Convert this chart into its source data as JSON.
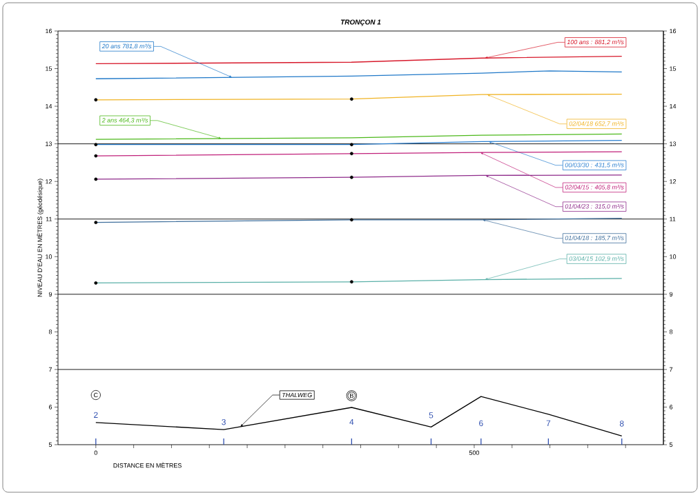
{
  "chart_data": {
    "type": "line",
    "title": "TRONÇON 1",
    "xlabel": "DISTANCE EN MÈTRES",
    "ylabel": "NIVEAU D'EAU EN MÈTRES (géodésique)",
    "xlim": [
      -50,
      750
    ],
    "ylim": [
      5,
      16
    ],
    "y2lim": [
      5,
      16
    ],
    "xticks": [
      0,
      {
        "value": 50,
        "label": null
      },
      {
        "value": 100,
        "label": null
      },
      {
        "value": 150,
        "label": null
      },
      {
        "value": 200,
        "label": null
      },
      {
        "value": 250,
        "label": null
      },
      {
        "value": 300,
        "label": null
      },
      {
        "value": 350,
        "label": null
      },
      {
        "value": 400,
        "label": null
      },
      {
        "value": 450,
        "label": null
      },
      500,
      {
        "value": 550,
        "label": null
      },
      {
        "value": 600,
        "label": null
      },
      {
        "value": 650,
        "label": null
      },
      {
        "value": 700,
        "label": null
      }
    ],
    "yticks": [
      5,
      6,
      7,
      8,
      9,
      10,
      11,
      12,
      13,
      14,
      15,
      16
    ],
    "y2ticks": [
      5,
      6,
      7,
      8,
      9,
      10,
      11,
      12,
      13,
      14,
      15,
      16
    ],
    "legend": false,
    "ref_lines": [
      {
        "axis": "y",
        "value": 7,
        "color": "#000000"
      },
      {
        "axis": "y",
        "value": 9,
        "color": "#000000"
      },
      {
        "axis": "y",
        "value": 11,
        "color": "#000000"
      },
      {
        "axis": "y",
        "value": 13,
        "color": "#000000"
      }
    ],
    "series": [
      {
        "name": "100 ans : 881,2 m³/s",
        "color": "#d7182a",
        "x": [
          0,
          338,
          510,
          695
        ],
        "values": [
          15.13,
          15.17,
          15.28,
          15.33
        ]
      },
      {
        "name": "20 ans   781,8 m³/s",
        "color": "#1f78c8",
        "x": [
          0,
          338,
          510,
          600,
          695
        ],
        "values": [
          14.73,
          14.8,
          14.88,
          14.94,
          14.91
        ]
      },
      {
        "name": "02/04/18   652,7 m³/s",
        "color": "#f0b323",
        "x": [
          0,
          338,
          510,
          695
        ],
        "values": [
          14.17,
          14.19,
          14.31,
          14.32
        ]
      },
      {
        "name": "2 ans   464,3 m³/s",
        "color": "#4cb81a",
        "x": [
          0,
          338,
          510,
          695
        ],
        "values": [
          13.12,
          13.16,
          13.23,
          13.26
        ]
      },
      {
        "name": "00/03/30 : 431,5 m³/s",
        "color": "#2a7fd0",
        "x": [
          0,
          338,
          510,
          695
        ],
        "values": [
          12.98,
          12.98,
          13.06,
          13.09
        ]
      },
      {
        "name": "02/04/15 : 405,8 m³/s",
        "color": "#c0207a",
        "x": [
          0,
          338,
          510,
          695
        ],
        "values": [
          12.68,
          12.74,
          12.77,
          12.79
        ]
      },
      {
        "name": "01/04/23 : 315,0 m³/s",
        "color": "#8e2a8a",
        "x": [
          0,
          338,
          510,
          695
        ],
        "values": [
          12.06,
          12.11,
          12.16,
          12.17
        ]
      },
      {
        "name": "01/04/18 : 185,7 m³/s",
        "color": "#3f6f9c",
        "x": [
          0,
          338,
          510,
          695
        ],
        "values": [
          10.91,
          10.98,
          10.98,
          11.02
        ]
      },
      {
        "name": "03/04/15   102,9 m³/s",
        "color": "#5ab0a8",
        "x": [
          0,
          338,
          510,
          695
        ],
        "values": [
          9.3,
          9.33,
          9.39,
          9.42
        ]
      },
      {
        "name": "THALWEG",
        "color": "#000000",
        "x": [
          0,
          169,
          338,
          443,
          509,
          598,
          695
        ],
        "values": [
          5.59,
          5.4,
          5.99,
          5.47,
          6.28,
          5.81,
          5.23
        ]
      },
      {
        "type": "scatter",
        "color": "#000000",
        "x": [
          0,
          0,
          0,
          0,
          0,
          0,
          338,
          338,
          338,
          338,
          338,
          338
        ],
        "values": [
          14.17,
          12.98,
          12.68,
          12.06,
          10.91,
          9.3,
          14.19,
          12.98,
          12.74,
          12.11,
          10.98,
          9.33
        ]
      }
    ],
    "annotations": [
      {
        "text": "2",
        "x": 0,
        "y": 5.59
      },
      {
        "text": "3",
        "x": 169,
        "y": 5.4
      },
      {
        "text": "4",
        "x": 338,
        "y": 5.99
      },
      {
        "text": "5",
        "x": 443,
        "y": 5.47
      },
      "6",
      {
        "text": "7",
        "x": 598,
        "y": 5.81
      },
      {
        "text": "8",
        "x": 695,
        "y": 5.23
      },
      "C",
      {
        "text": "B",
        "x": 338,
        "y": 5.99
      }
    ]
  }
}
